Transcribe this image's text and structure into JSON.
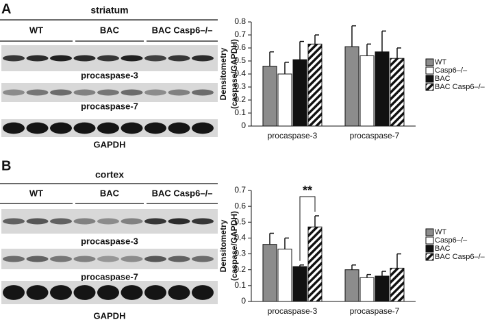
{
  "panels": [
    {
      "letter": "A",
      "region": "striatum",
      "groups": [
        "WT",
        "BAC",
        "BAC Casp6–/–"
      ],
      "blots": [
        "procaspase-3",
        "procaspase-7",
        "GAPDH"
      ]
    },
    {
      "letter": "B",
      "region": "cortex",
      "groups": [
        "WT",
        "BAC",
        "BAC Casp6–/–"
      ],
      "blots": [
        "procaspase-3",
        "procaspase-7",
        "GAPDH"
      ]
    }
  ],
  "chart_data": [
    {
      "type": "bar",
      "y_label": [
        "Densitometry",
        "(caspase/GAPDH)"
      ],
      "categories": [
        "procaspase-3",
        "procaspase-7"
      ],
      "series": [
        {
          "name": "WT",
          "color": "#8c8c8c",
          "values": [
            0.46,
            0.61
          ],
          "errors": [
            0.11,
            0.16
          ]
        },
        {
          "name": "Casp6–/–",
          "color": "#ffffff",
          "values": [
            0.4,
            0.54
          ],
          "errors": [
            0.09,
            0.09
          ]
        },
        {
          "name": "BAC",
          "color": "#111111",
          "values": [
            0.51,
            0.57
          ],
          "errors": [
            0.14,
            0.16
          ]
        },
        {
          "name": "BAC Casp6–/–",
          "color": "#111111",
          "pattern": "hatch",
          "values": [
            0.63,
            0.52
          ],
          "errors": [
            0.07,
            0.08
          ]
        }
      ],
      "ylim": [
        0,
        0.8
      ],
      "yticks": [
        0,
        0.1,
        0.2,
        0.3,
        0.4,
        0.5,
        0.6,
        0.7,
        0.8
      ],
      "legend": "right"
    },
    {
      "type": "bar",
      "y_label": [
        "Densitometry",
        "(caspase/GAPDH)"
      ],
      "categories": [
        "procaspase-3",
        "procaspase-7"
      ],
      "series": [
        {
          "name": "WT",
          "color": "#8c8c8c",
          "values": [
            0.36,
            0.2
          ],
          "errors": [
            0.07,
            0.03
          ]
        },
        {
          "name": "Casp6–/–",
          "color": "#ffffff",
          "values": [
            0.33,
            0.15
          ],
          "errors": [
            0.07,
            0.02
          ]
        },
        {
          "name": "BAC",
          "color": "#111111",
          "values": [
            0.22,
            0.16
          ],
          "errors": [
            0.01,
            0.03
          ]
        },
        {
          "name": "BAC Casp6–/–",
          "color": "#111111",
          "pattern": "hatch",
          "values": [
            0.47,
            0.21
          ],
          "errors": [
            0.07,
            0.09
          ]
        }
      ],
      "ylim": [
        0,
        0.7
      ],
      "yticks": [
        0,
        0.1,
        0.2,
        0.3,
        0.4,
        0.5,
        0.6,
        0.7
      ],
      "legend": "right",
      "annotations": [
        "**"
      ]
    }
  ]
}
